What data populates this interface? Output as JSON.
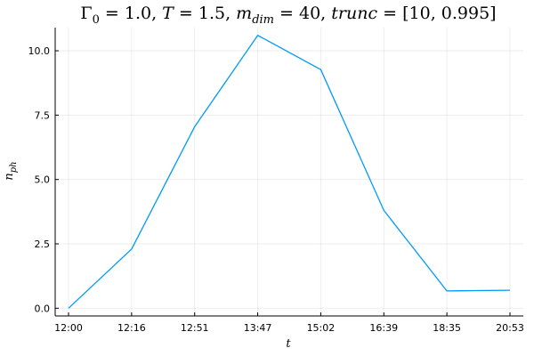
{
  "chart_data": {
    "type": "line",
    "title": {
      "gamma": "Γ",
      "gamma_sub": "0",
      "p1": " = 1.0, ",
      "T": "T",
      "p2": " = 1.5, ",
      "m": "m",
      "m_sub": "dim",
      "p3": " = 40, ",
      "trunc": "trunc",
      "p4": " = [10,  0.995]"
    },
    "xlabel": "t",
    "ylabel": {
      "main": "n",
      "sub": "ph"
    },
    "x_ticks": [
      "12:00",
      "12:16",
      "12:51",
      "13:47",
      "15:02",
      "16:39",
      "18:35",
      "20:53"
    ],
    "y_ticks": [
      "0.0",
      "2.5",
      "5.0",
      "7.5",
      "10.0"
    ],
    "y_tick_values": [
      0,
      2.5,
      5,
      7.5,
      10
    ],
    "ylim": [
      -0.3,
      10.9
    ],
    "grid": true,
    "legend": "none",
    "series": [
      {
        "color": "#009AFA",
        "x": [
          "12:00",
          "12:16",
          "12:51",
          "13:47",
          "15:02",
          "16:39",
          "18:35",
          "20:53"
        ],
        "values": [
          0.0,
          2.3,
          7.05,
          10.6,
          9.27,
          3.8,
          0.67,
          0.7
        ]
      }
    ]
  }
}
